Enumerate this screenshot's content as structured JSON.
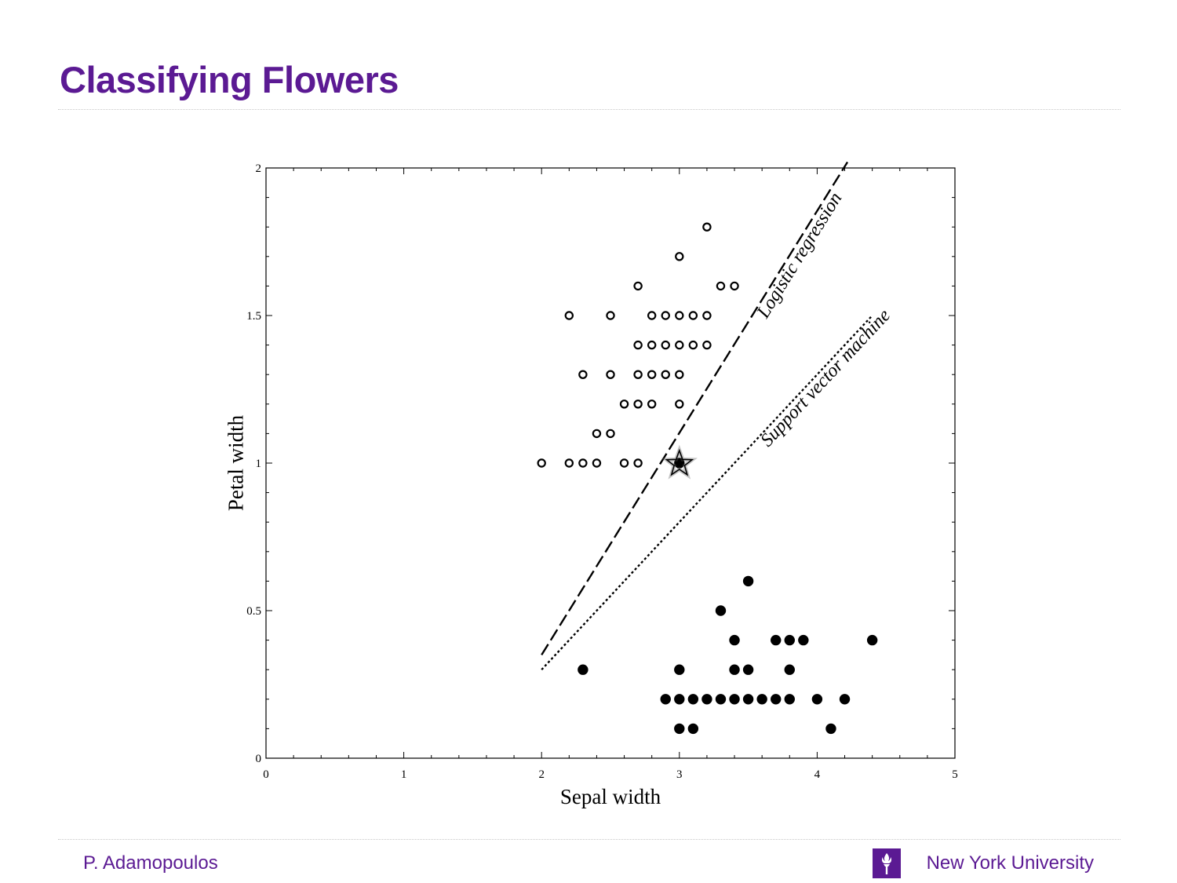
{
  "slide": {
    "title": "Classifying Flowers",
    "author": "P. Adamopoulos",
    "organization": "New York University",
    "logo_icon": "nyu-torch-icon",
    "accent_color": "#5b1a93"
  },
  "chart_data": {
    "type": "scatter",
    "title": "",
    "xlabel": "Sepal width",
    "ylabel": "Petal width",
    "xlim": [
      0,
      5
    ],
    "ylim": [
      0,
      2
    ],
    "xticks": [
      0,
      1,
      2,
      3,
      4,
      5
    ],
    "yticks": [
      0,
      0.5,
      1,
      1.5,
      2
    ],
    "ytick_labels": [
      "0",
      "0.5",
      "1",
      "1.5",
      "2"
    ],
    "grid": false,
    "legend": "none",
    "series": [
      {
        "marker": "hollow-circle",
        "points": [
          [
            3.2,
            1.8
          ],
          [
            3.0,
            1.7
          ],
          [
            2.7,
            1.6
          ],
          [
            3.3,
            1.6
          ],
          [
            3.4,
            1.6
          ],
          [
            2.2,
            1.5
          ],
          [
            2.5,
            1.5
          ],
          [
            2.8,
            1.5
          ],
          [
            2.9,
            1.5
          ],
          [
            3.0,
            1.5
          ],
          [
            3.1,
            1.5
          ],
          [
            3.2,
            1.5
          ],
          [
            2.7,
            1.4
          ],
          [
            2.8,
            1.4
          ],
          [
            2.9,
            1.4
          ],
          [
            3.0,
            1.4
          ],
          [
            3.1,
            1.4
          ],
          [
            3.2,
            1.4
          ],
          [
            2.3,
            1.3
          ],
          [
            2.5,
            1.3
          ],
          [
            2.7,
            1.3
          ],
          [
            2.8,
            1.3
          ],
          [
            2.9,
            1.3
          ],
          [
            3.0,
            1.3
          ],
          [
            2.6,
            1.2
          ],
          [
            2.7,
            1.2
          ],
          [
            2.8,
            1.2
          ],
          [
            3.0,
            1.2
          ],
          [
            2.4,
            1.1
          ],
          [
            2.5,
            1.1
          ],
          [
            2.0,
            1.0
          ],
          [
            2.2,
            1.0
          ],
          [
            2.3,
            1.0
          ],
          [
            2.4,
            1.0
          ],
          [
            2.6,
            1.0
          ],
          [
            2.7,
            1.0
          ]
        ]
      },
      {
        "marker": "filled-circle",
        "points": [
          [
            3.5,
            0.6
          ],
          [
            3.3,
            0.5
          ],
          [
            3.4,
            0.4
          ],
          [
            3.7,
            0.4
          ],
          [
            3.8,
            0.4
          ],
          [
            3.9,
            0.4
          ],
          [
            4.4,
            0.4
          ],
          [
            2.3,
            0.3
          ],
          [
            3.0,
            0.3
          ],
          [
            3.4,
            0.3
          ],
          [
            3.5,
            0.3
          ],
          [
            3.8,
            0.3
          ],
          [
            2.9,
            0.2
          ],
          [
            3.0,
            0.2
          ],
          [
            3.1,
            0.2
          ],
          [
            3.2,
            0.2
          ],
          [
            3.3,
            0.2
          ],
          [
            3.4,
            0.2
          ],
          [
            3.5,
            0.2
          ],
          [
            3.6,
            0.2
          ],
          [
            3.7,
            0.2
          ],
          [
            3.8,
            0.2
          ],
          [
            4.0,
            0.2
          ],
          [
            4.2,
            0.2
          ],
          [
            3.0,
            0.1
          ],
          [
            3.1,
            0.1
          ],
          [
            4.1,
            0.1
          ]
        ]
      }
    ],
    "highlight_point": {
      "x": 3.0,
      "y": 1.0,
      "marker": "star-icon"
    },
    "boundary_lines": [
      {
        "name": "Logistic regression",
        "style": "dashed",
        "from": [
          2.0,
          0.35
        ],
        "to": [
          4.22,
          2.02
        ]
      },
      {
        "name": "Support vector machine",
        "style": "dotted",
        "from": [
          2.0,
          0.3
        ],
        "to": [
          4.4,
          1.5
        ]
      }
    ]
  }
}
